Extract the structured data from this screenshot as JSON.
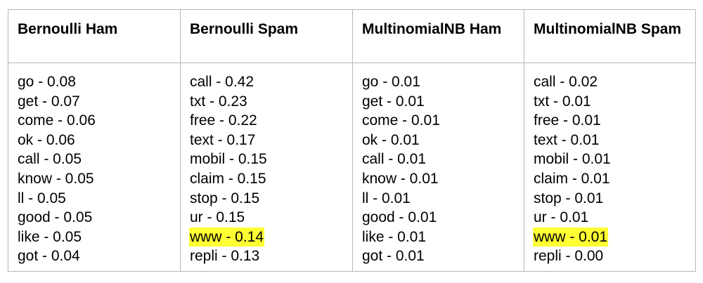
{
  "table": {
    "columns": [
      {
        "header": "Bernoulli Ham",
        "items": [
          {
            "text": "go - 0.08",
            "highlight": false
          },
          {
            "text": "get - 0.07",
            "highlight": false
          },
          {
            "text": "come - 0.06",
            "highlight": false
          },
          {
            "text": "ok - 0.06",
            "highlight": false
          },
          {
            "text": "call - 0.05",
            "highlight": false
          },
          {
            "text": "know - 0.05",
            "highlight": false
          },
          {
            "text": "ll - 0.05",
            "highlight": false
          },
          {
            "text": "good - 0.05",
            "highlight": false
          },
          {
            "text": "like - 0.05",
            "highlight": false
          },
          {
            "text": "got - 0.04",
            "highlight": false
          }
        ]
      },
      {
        "header": "Bernoulli Spam",
        "items": [
          {
            "text": "call - 0.42",
            "highlight": false
          },
          {
            "text": "txt - 0.23",
            "highlight": false
          },
          {
            "text": "free - 0.22",
            "highlight": false
          },
          {
            "text": "text - 0.17",
            "highlight": false
          },
          {
            "text": "mobil - 0.15",
            "highlight": false
          },
          {
            "text": "claim - 0.15",
            "highlight": false
          },
          {
            "text": "stop - 0.15",
            "highlight": false
          },
          {
            "text": "ur - 0.15",
            "highlight": false
          },
          {
            "text": "www - 0.14",
            "highlight": true
          },
          {
            "text": "repli - 0.13",
            "highlight": false
          }
        ]
      },
      {
        "header": "MultinomialNB Ham",
        "items": [
          {
            "text": "go - 0.01",
            "highlight": false
          },
          {
            "text": "get - 0.01",
            "highlight": false
          },
          {
            "text": "come - 0.01",
            "highlight": false
          },
          {
            "text": "ok - 0.01",
            "highlight": false
          },
          {
            "text": "call - 0.01",
            "highlight": false
          },
          {
            "text": "know - 0.01",
            "highlight": false
          },
          {
            "text": "ll - 0.01",
            "highlight": false
          },
          {
            "text": "good - 0.01",
            "highlight": false
          },
          {
            "text": "like - 0.01",
            "highlight": false
          },
          {
            "text": "got - 0.01",
            "highlight": false
          }
        ]
      },
      {
        "header": "MultinomialNB Spam",
        "items": [
          {
            "text": "call - 0.02",
            "highlight": false
          },
          {
            "text": "txt - 0.01",
            "highlight": false
          },
          {
            "text": "free - 0.01",
            "highlight": false
          },
          {
            "text": "text - 0.01",
            "highlight": false
          },
          {
            "text": "mobil - 0.01",
            "highlight": false
          },
          {
            "text": "claim - 0.01",
            "highlight": false
          },
          {
            "text": "stop - 0.01",
            "highlight": false
          },
          {
            "text": "ur - 0.01",
            "highlight": false
          },
          {
            "text": "www - 0.01",
            "highlight": true
          },
          {
            "text": "repli - 0.00",
            "highlight": false
          }
        ]
      }
    ]
  },
  "colors": {
    "border": "#b7b7b7",
    "highlight": "#ffff33",
    "text": "#000000"
  }
}
